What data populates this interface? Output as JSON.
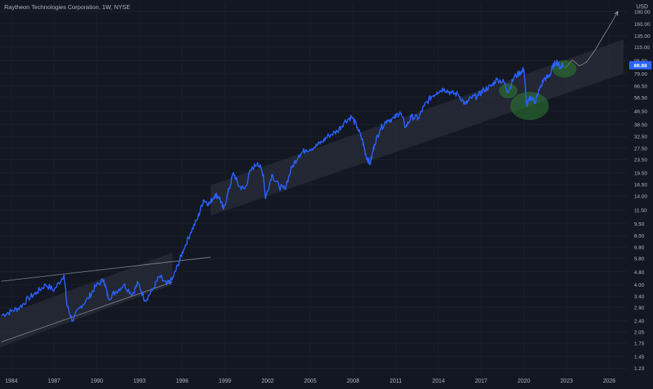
{
  "header": {
    "title": "Raytheon Technologies Corporation, 1W, NYSE"
  },
  "colors": {
    "background": "#131722",
    "price_line": "#2962ff",
    "channel_fill": "#2a2e39",
    "highlight_circle": "#2e7d32",
    "trend_line": "#b2b5be",
    "price_badge": "#2962ff",
    "axis_text": "#b2b5be"
  },
  "chart_data": {
    "type": "line",
    "title": "Raytheon Technologies Corporation, 1W, NYSE",
    "scale": "log",
    "y_unit": "USD",
    "current_price_label": "88.88",
    "x_ticks": [
      "1984",
      "1987",
      "1990",
      "1993",
      "1996",
      "1999",
      "2002",
      "2005",
      "2008",
      "2011",
      "2014",
      "2017",
      "2020",
      "2023",
      "2026"
    ],
    "y_ticks": [
      "190.00",
      "160.00",
      "135.00",
      "115.00",
      "95.00",
      "79.00",
      "66.50",
      "56.50",
      "46.50",
      "38.50",
      "32.50",
      "27.50",
      "23.50",
      "19.50",
      "16.50",
      "14.00",
      "11.50",
      "9.50",
      "8.00",
      "6.80",
      "5.80",
      "4.80",
      "4.00",
      "3.40",
      "2.90",
      "2.40",
      "2.05",
      "1.75",
      "1.45",
      "1.23"
    ],
    "xlim": [
      1983.2,
      2027.3
    ],
    "ylim": [
      1.15,
      215
    ],
    "series": [
      {
        "values": [
          [
            1983.3,
            2.6
          ],
          [
            1984.0,
            2.75
          ],
          [
            1984.6,
            2.9
          ],
          [
            1985.2,
            3.3
          ],
          [
            1985.8,
            3.6
          ],
          [
            1986.4,
            4.0
          ],
          [
            1987.0,
            3.7
          ],
          [
            1987.7,
            4.6
          ],
          [
            1987.9,
            3.0
          ],
          [
            1988.3,
            2.4
          ],
          [
            1988.8,
            2.9
          ],
          [
            1989.4,
            3.3
          ],
          [
            1989.9,
            3.9
          ],
          [
            1990.5,
            4.3
          ],
          [
            1990.8,
            3.3
          ],
          [
            1991.3,
            3.6
          ],
          [
            1991.9,
            4.0
          ],
          [
            1992.5,
            3.5
          ],
          [
            1992.9,
            4.1
          ],
          [
            1993.4,
            3.2
          ],
          [
            1993.9,
            3.7
          ],
          [
            1994.4,
            4.5
          ],
          [
            1994.9,
            4.0
          ],
          [
            1995.3,
            4.3
          ],
          [
            1995.7,
            5.3
          ],
          [
            1996.1,
            6.6
          ],
          [
            1996.6,
            8.4
          ],
          [
            1997.1,
            10.3
          ],
          [
            1997.5,
            13.3
          ],
          [
            1997.9,
            12.5
          ],
          [
            1998.3,
            14.3
          ],
          [
            1998.6,
            13.8
          ],
          [
            1998.9,
            11.6
          ],
          [
            1999.3,
            15.5
          ],
          [
            1999.6,
            19.5
          ],
          [
            2000.0,
            16.0
          ],
          [
            2000.4,
            15.5
          ],
          [
            2000.8,
            20.0
          ],
          [
            2001.3,
            22.5
          ],
          [
            2001.7,
            19.0
          ],
          [
            2001.85,
            13.5
          ],
          [
            2002.3,
            19.0
          ],
          [
            2002.8,
            16.0
          ],
          [
            2003.2,
            15.5
          ],
          [
            2003.7,
            21.0
          ],
          [
            2004.2,
            25.0
          ],
          [
            2004.7,
            27.0
          ],
          [
            2005.3,
            28.0
          ],
          [
            2005.8,
            30.0
          ],
          [
            2006.3,
            33.0
          ],
          [
            2006.9,
            35.0
          ],
          [
            2007.4,
            40.0
          ],
          [
            2007.9,
            43.0
          ],
          [
            2008.3,
            37.0
          ],
          [
            2008.7,
            30.0
          ],
          [
            2008.9,
            25.0
          ],
          [
            2009.2,
            22.0
          ],
          [
            2009.5,
            29.0
          ],
          [
            2009.9,
            36.0
          ],
          [
            2010.4,
            41.0
          ],
          [
            2010.9,
            42.0
          ],
          [
            2011.3,
            46.0
          ],
          [
            2011.7,
            37.0
          ],
          [
            2012.1,
            43.0
          ],
          [
            2012.6,
            42.0
          ],
          [
            2013.0,
            50.0
          ],
          [
            2013.5,
            57.0
          ],
          [
            2013.9,
            61.0
          ],
          [
            2014.4,
            64.0
          ],
          [
            2014.9,
            60.0
          ],
          [
            2015.4,
            59.0
          ],
          [
            2015.9,
            51.0
          ],
          [
            2016.3,
            56.0
          ],
          [
            2016.8,
            58.0
          ],
          [
            2017.2,
            63.0
          ],
          [
            2017.7,
            66.0
          ],
          [
            2018.1,
            73.0
          ],
          [
            2018.6,
            70.0
          ],
          [
            2018.9,
            61.0
          ],
          [
            2019.3,
            75.0
          ],
          [
            2019.8,
            81.0
          ],
          [
            2020.0,
            84.0
          ],
          [
            2020.2,
            50.0
          ],
          [
            2020.5,
            57.0
          ],
          [
            2020.8,
            53.0
          ],
          [
            2021.0,
            60.0
          ],
          [
            2021.4,
            73.0
          ],
          [
            2021.8,
            76.0
          ],
          [
            2022.0,
            86.0
          ],
          [
            2022.3,
            94.0
          ],
          [
            2022.55,
            86.0
          ],
          [
            2022.7,
            90.0
          ],
          [
            2022.8,
            88.88
          ]
        ]
      }
    ],
    "projection": [
      [
        2022.9,
        85.0
      ],
      [
        2023.4,
        96.0
      ],
      [
        2023.9,
        88.0
      ],
      [
        2024.4,
        93.0
      ],
      [
        2025.0,
        110.0
      ],
      [
        2025.6,
        135.0
      ],
      [
        2026.2,
        165.0
      ],
      [
        2026.6,
        190.0
      ]
    ],
    "channels": [
      {
        "x": [
          1983.2,
          1995.3
        ],
        "low": [
          1.65,
          4.0
        ],
        "high": [
          2.55,
          6.3
        ]
      },
      {
        "x": [
          1998.0,
          2027.0
        ],
        "low": [
          10.6,
          79.0
        ],
        "high": [
          16.3,
          128.0
        ]
      }
    ],
    "trend_lines": [
      {
        "from": [
          1983.3,
          4.2
        ],
        "to": [
          1998.0,
          5.9
        ]
      },
      {
        "from": [
          1983.3,
          1.78
        ],
        "to": [
          1995.3,
          4.15
        ]
      }
    ],
    "highlights": [
      {
        "x": 2018.9,
        "y": 62.0,
        "rx_years": 0.65,
        "ry_ratio": 1.11
      },
      {
        "x": 2020.4,
        "y": 50.0,
        "rx_years": 1.35,
        "ry_ratio": 1.22
      },
      {
        "x": 2022.85,
        "y": 84.5,
        "rx_years": 0.85,
        "ry_ratio": 1.13
      }
    ]
  }
}
